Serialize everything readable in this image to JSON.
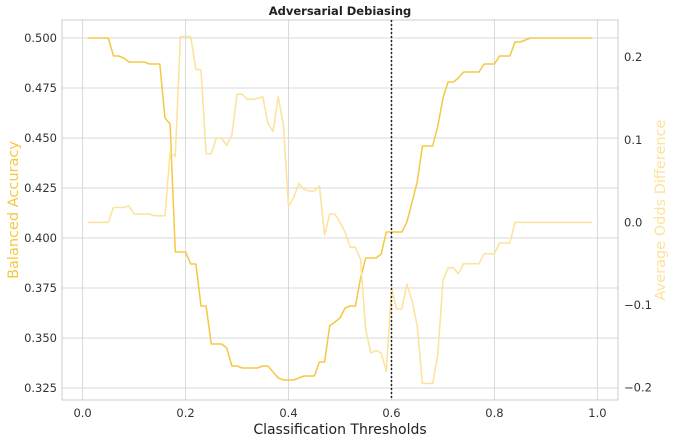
{
  "chart_data": {
    "type": "line",
    "title": "Adversarial Debiasing",
    "xlabel": "Classification Thresholds",
    "ylabel_left": "Balanced Accuracy",
    "ylabel_right": "Average Odds Difference",
    "xlim": [
      -0.04,
      1.04
    ],
    "ylim_left": [
      0.319,
      0.509
    ],
    "ylim_right": [
      -0.215,
      0.245
    ],
    "x_ticks": [
      "0.0",
      "0.2",
      "0.4",
      "0.6",
      "0.8",
      "1.0"
    ],
    "x_tick_values": [
      0.0,
      0.2,
      0.4,
      0.6,
      0.8,
      1.0
    ],
    "y_left_ticks": [
      "0.325",
      "0.350",
      "0.375",
      "0.400",
      "0.425",
      "0.450",
      "0.475",
      "0.500"
    ],
    "y_left_tick_values": [
      0.325,
      0.35,
      0.375,
      0.4,
      0.425,
      0.45,
      0.475,
      0.5
    ],
    "y_right_ticks": [
      "−0.2",
      "−0.1",
      "0.0",
      "0.1",
      "0.2"
    ],
    "y_right_tick_values": [
      -0.2,
      -0.1,
      0.0,
      0.1,
      0.2
    ],
    "grid": true,
    "vline_x": 0.6,
    "colors": {
      "balanced_accuracy": "#f5c842",
      "avg_odds": "#fde29a",
      "left_label": "#f5c842",
      "right_label": "#fde29a",
      "vline": "#222222",
      "grid": "#d9d9d9",
      "frame": "#cccccc"
    },
    "series": [
      {
        "axis": "left",
        "x": [
          0.01,
          0.02,
          0.03,
          0.04,
          0.05,
          0.06,
          0.07,
          0.08,
          0.09,
          0.1,
          0.11,
          0.12,
          0.13,
          0.14,
          0.15,
          0.16,
          0.17,
          0.18,
          0.19,
          0.2,
          0.21,
          0.22,
          0.23,
          0.24,
          0.25,
          0.26,
          0.27,
          0.28,
          0.29,
          0.3,
          0.31,
          0.32,
          0.33,
          0.34,
          0.35,
          0.36,
          0.37,
          0.38,
          0.39,
          0.4,
          0.41,
          0.42,
          0.43,
          0.44,
          0.45,
          0.46,
          0.47,
          0.48,
          0.49,
          0.5,
          0.51,
          0.52,
          0.53,
          0.54,
          0.55,
          0.56,
          0.57,
          0.58,
          0.59,
          0.6,
          0.61,
          0.62,
          0.63,
          0.64,
          0.65,
          0.66,
          0.67,
          0.68,
          0.69,
          0.7,
          0.71,
          0.72,
          0.73,
          0.74,
          0.75,
          0.76,
          0.77,
          0.78,
          0.79,
          0.8,
          0.81,
          0.82,
          0.83,
          0.84,
          0.85,
          0.86,
          0.87,
          0.88,
          0.89,
          0.9,
          0.91,
          0.92,
          0.93,
          0.94,
          0.95,
          0.96,
          0.97,
          0.98,
          0.99
        ],
        "values": [
          0.5,
          0.5,
          0.5,
          0.5,
          0.5,
          0.491,
          0.491,
          0.49,
          0.488,
          0.488,
          0.488,
          0.488,
          0.487,
          0.487,
          0.487,
          0.46,
          0.457,
          0.393,
          0.393,
          0.393,
          0.387,
          0.387,
          0.366,
          0.366,
          0.347,
          0.347,
          0.347,
          0.345,
          0.336,
          0.336,
          0.335,
          0.335,
          0.335,
          0.335,
          0.336,
          0.336,
          0.333,
          0.33,
          0.329,
          0.329,
          0.329,
          0.33,
          0.331,
          0.331,
          0.331,
          0.338,
          0.338,
          0.356,
          0.358,
          0.36,
          0.365,
          0.366,
          0.366,
          0.38,
          0.39,
          0.39,
          0.39,
          0.392,
          0.403,
          0.403,
          0.403,
          0.403,
          0.408,
          0.418,
          0.428,
          0.446,
          0.446,
          0.446,
          0.456,
          0.47,
          0.478,
          0.478,
          0.48,
          0.483,
          0.483,
          0.483,
          0.483,
          0.487,
          0.487,
          0.487,
          0.491,
          0.491,
          0.491,
          0.498,
          0.498,
          0.499,
          0.5,
          0.5,
          0.5,
          0.5,
          0.5,
          0.5,
          0.5,
          0.5,
          0.5,
          0.5,
          0.5,
          0.5,
          0.5
        ]
      },
      {
        "axis": "right",
        "x": [
          0.01,
          0.02,
          0.03,
          0.04,
          0.05,
          0.06,
          0.07,
          0.08,
          0.09,
          0.1,
          0.11,
          0.12,
          0.13,
          0.14,
          0.15,
          0.16,
          0.17,
          0.18,
          0.19,
          0.2,
          0.21,
          0.22,
          0.23,
          0.24,
          0.25,
          0.26,
          0.27,
          0.28,
          0.29,
          0.3,
          0.31,
          0.32,
          0.33,
          0.34,
          0.35,
          0.36,
          0.37,
          0.38,
          0.39,
          0.4,
          0.41,
          0.42,
          0.43,
          0.44,
          0.45,
          0.46,
          0.47,
          0.48,
          0.49,
          0.5,
          0.51,
          0.52,
          0.53,
          0.54,
          0.55,
          0.56,
          0.57,
          0.58,
          0.59,
          0.6,
          0.61,
          0.62,
          0.63,
          0.64,
          0.65,
          0.66,
          0.67,
          0.68,
          0.69,
          0.7,
          0.71,
          0.72,
          0.73,
          0.74,
          0.75,
          0.76,
          0.77,
          0.78,
          0.79,
          0.8,
          0.81,
          0.82,
          0.83,
          0.84,
          0.85,
          0.86,
          0.87,
          0.88,
          0.89,
          0.9,
          0.91,
          0.92,
          0.93,
          0.94,
          0.95,
          0.96,
          0.97,
          0.98,
          0.99
        ],
        "values": [
          0.0,
          0.0,
          0.0,
          0.0,
          0.0,
          0.018,
          0.018,
          0.018,
          0.02,
          0.01,
          0.01,
          0.01,
          0.01,
          0.008,
          0.008,
          0.008,
          0.085,
          0.08,
          0.225,
          0.225,
          0.225,
          0.185,
          0.185,
          0.083,
          0.083,
          0.102,
          0.102,
          0.093,
          0.106,
          0.155,
          0.155,
          0.149,
          0.149,
          0.15,
          0.152,
          0.12,
          0.11,
          0.152,
          0.118,
          0.02,
          0.03,
          0.047,
          0.04,
          0.038,
          0.038,
          0.044,
          -0.015,
          0.01,
          0.01,
          0.0,
          -0.012,
          -0.03,
          -0.03,
          -0.045,
          -0.13,
          -0.158,
          -0.155,
          -0.158,
          -0.18,
          -0.08,
          -0.105,
          -0.105,
          -0.075,
          -0.095,
          -0.125,
          -0.195,
          -0.195,
          -0.195,
          -0.16,
          -0.07,
          -0.055,
          -0.055,
          -0.062,
          -0.05,
          -0.05,
          -0.05,
          -0.05,
          -0.038,
          -0.038,
          -0.038,
          -0.025,
          -0.025,
          -0.025,
          0.0,
          0.0,
          0.0,
          0.0,
          0.0,
          0.0,
          0.0,
          0.0,
          0.0,
          0.0,
          0.0,
          0.0,
          0.0,
          0.0,
          0.0,
          0.0
        ]
      }
    ]
  }
}
